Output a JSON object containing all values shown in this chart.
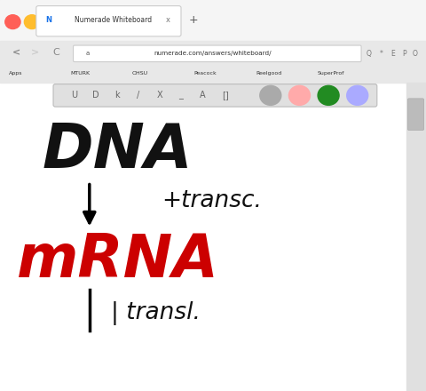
{
  "bg_color": "#f0f0f0",
  "whiteboard_bg": "#ffffff",
  "browser_bar_color": "#e8e8e8",
  "title_bar_color": "#f5f5f5",
  "url": "numerade.com/answers/whiteboard/",
  "tab_title": "Numerade Whiteboard",
  "dna_text": "DNA",
  "mrna_text": "mRNA",
  "transc_text": "+transc.",
  "transl_text": "| transl.",
  "arrow_color": "#000000",
  "mrna_color": "#cc0000",
  "black_text_color": "#111111",
  "circle_tool_colors": [
    "#aaaaaa",
    "#ffaaaa",
    "#228B22",
    "#aaaaff"
  ],
  "traffic_colors": [
    "#ff5f57",
    "#ffbd2e",
    "#28c840"
  ]
}
